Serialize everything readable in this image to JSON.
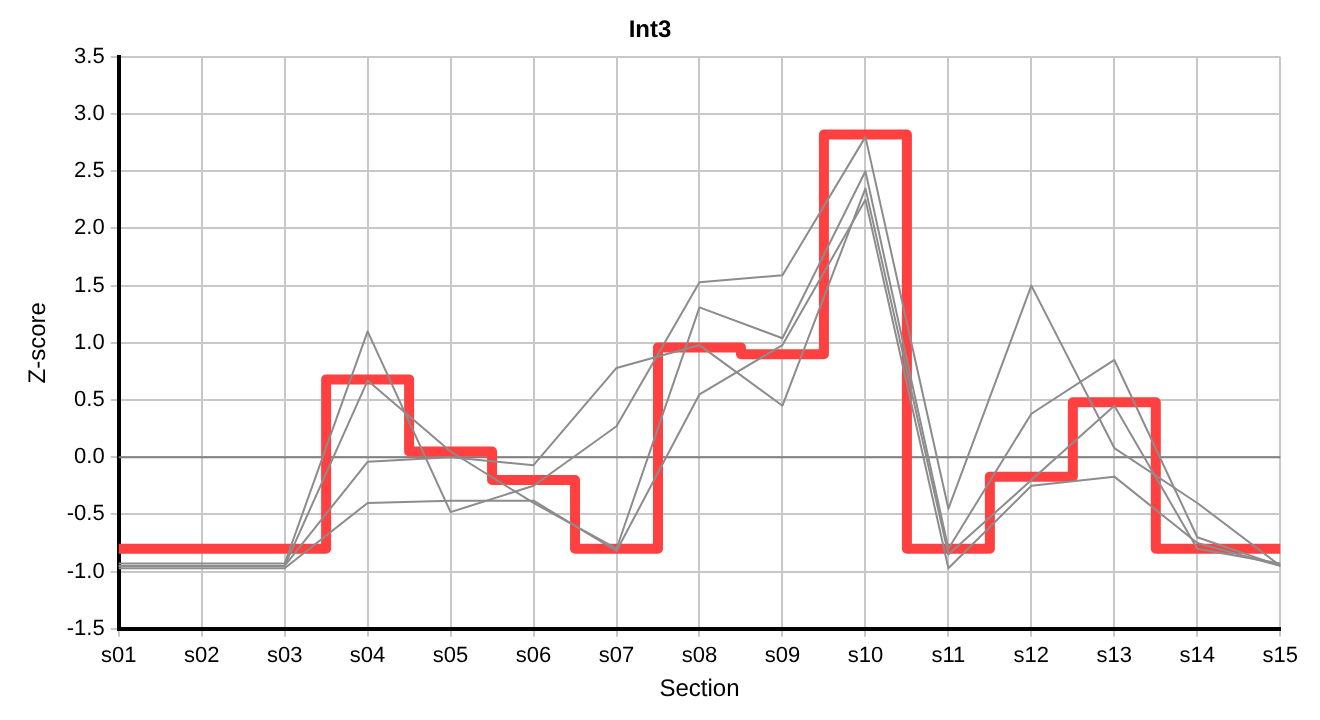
{
  "chart_data": {
    "type": "line",
    "title": "Int3",
    "xlabel": "Section",
    "ylabel": "Z-score",
    "categories": [
      "s01",
      "s02",
      "s03",
      "s04",
      "s05",
      "s06",
      "s07",
      "s08",
      "s09",
      "s10",
      "s11",
      "s12",
      "s13",
      "s14",
      "s15"
    ],
    "series": [
      {
        "type": "line",
        "color": "#8c8c8c",
        "values": [
          -0.93,
          -0.93,
          -0.93,
          1.1,
          -0.48,
          -0.25,
          0.27,
          1.53,
          1.59,
          2.8,
          -0.45,
          1.5,
          0.08,
          -0.4,
          -0.95
        ]
      },
      {
        "type": "line",
        "color": "#8c8c8c",
        "values": [
          -0.95,
          -0.95,
          -0.95,
          0.67,
          0.05,
          -0.4,
          -0.8,
          1.31,
          1.04,
          2.5,
          -0.8,
          0.38,
          0.85,
          -0.7,
          -0.95
        ]
      },
      {
        "type": "line",
        "color": "#8c8c8c",
        "values": [
          -0.95,
          -0.95,
          -0.95,
          -0.04,
          0.0,
          -0.07,
          0.78,
          0.98,
          0.45,
          2.35,
          -0.85,
          -0.2,
          0.45,
          -0.8,
          -0.93
        ]
      },
      {
        "type": "line",
        "color": "#8c8c8c",
        "values": [
          -0.97,
          -0.97,
          -0.97,
          -0.4,
          -0.38,
          -0.38,
          -0.82,
          0.55,
          0.98,
          2.25,
          -0.97,
          -0.25,
          -0.17,
          -0.75,
          -0.95
        ]
      },
      {
        "type": "step",
        "color": "#ff4040",
        "values": [
          -0.8,
          -0.8,
          -0.8,
          0.68,
          0.05,
          -0.2,
          -0.8,
          0.96,
          0.9,
          2.82,
          -0.8,
          -0.17,
          0.48,
          -0.8,
          -0.8
        ]
      }
    ],
    "ylim": [
      -1.5,
      3.5
    ],
    "yticks": [
      {
        "value": -1.5,
        "label": "-1.5"
      },
      {
        "value": -1,
        "label": "-1.0"
      },
      {
        "value": -0.5,
        "label": "-0.5"
      },
      {
        "value": 0,
        "label": "0.0"
      },
      {
        "value": 0.5,
        "label": "0.5"
      },
      {
        "value": 1,
        "label": "1.0"
      },
      {
        "value": 1.5,
        "label": "1.5"
      },
      {
        "value": 2,
        "label": "2.0"
      },
      {
        "value": 2.5,
        "label": "2.5"
      },
      {
        "value": 3,
        "label": "3.0"
      },
      {
        "value": 3.5,
        "label": "3.5"
      }
    ],
    "ref_lines": [
      {
        "axis": "y",
        "value": 0,
        "color": "#808080"
      }
    ],
    "grid": true,
    "legend": false,
    "marker": "none",
    "line_style": "solid"
  }
}
